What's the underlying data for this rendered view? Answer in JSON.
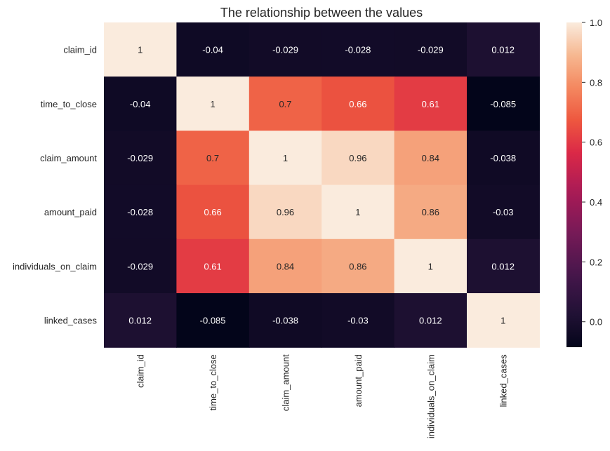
{
  "chart_data": {
    "type": "heatmap",
    "title": "The relationship between the values",
    "xlabel": "",
    "ylabel": "",
    "row_labels": [
      "claim_id",
      "time_to_close",
      "claim_amount",
      "amount_paid",
      "individuals_on_claim",
      "linked_cases"
    ],
    "col_labels": [
      "claim_id",
      "time_to_close",
      "claim_amount",
      "amount_paid",
      "individuals_on_claim",
      "linked_cases"
    ],
    "values": [
      [
        1,
        -0.04,
        -0.029,
        -0.028,
        -0.029,
        0.012
      ],
      [
        -0.04,
        1,
        0.7,
        0.66,
        0.61,
        -0.085
      ],
      [
        -0.029,
        0.7,
        1,
        0.96,
        0.84,
        -0.038
      ],
      [
        -0.028,
        0.66,
        0.96,
        1,
        0.86,
        -0.03
      ],
      [
        -0.029,
        0.61,
        0.84,
        0.86,
        1,
        0.012
      ],
      [
        0.012,
        -0.085,
        -0.038,
        -0.03,
        0.012,
        1
      ]
    ],
    "value_range": [
      -0.085,
      1
    ],
    "colormap": "rocket",
    "colorbar_ticks": [
      0.0,
      0.2,
      0.4,
      0.6,
      0.8,
      1.0
    ],
    "colorbar_tick_labels": [
      "0.0",
      "0.2",
      "0.4",
      "0.6",
      "0.8",
      "1.0"
    ],
    "annotate": true
  }
}
